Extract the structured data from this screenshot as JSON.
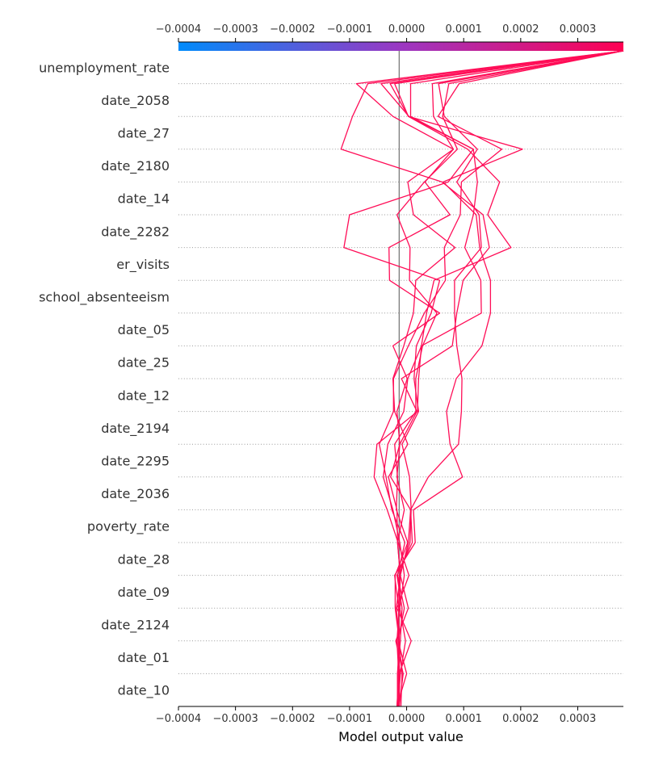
{
  "chart_data": {
    "type": "line",
    "xlabel": "Model output value",
    "xlim": [
      -0.0004,
      0.00038
    ],
    "base_value": -1.3e-05,
    "x_ticks": [
      -0.0004,
      -0.0003,
      -0.0002,
      -0.0001,
      0.0,
      0.0001,
      0.0002,
      0.0003
    ],
    "x_tick_labels": [
      "−0.0004",
      "−0.0003",
      "−0.0002",
      "−0.0001",
      "0.0000",
      "0.0001",
      "0.0002",
      "0.0003"
    ],
    "features": [
      "unemployment_rate",
      "date_2058",
      "date_27",
      "date_2180",
      "date_14",
      "date_2282",
      "er_visits",
      "school_absenteeism",
      "date_05",
      "date_25",
      "date_12",
      "date_2194",
      "date_2295",
      "date_2036",
      "poverty_rate",
      "date_28",
      "date_09",
      "date_2124",
      "date_01",
      "date_10"
    ],
    "line_color": "#ff0d57",
    "colorbar": [
      "#008bfb",
      "#ff0052"
    ],
    "series": [
      {
        "values": [
          -1.7e-05,
          -1.4e-05,
          -1.7e-05,
          -1.3e-05,
          -1.1e-05,
          -1.6e-05,
          -4e-06,
          -1.7e-05,
          -1.2e-05,
          -1.7e-05,
          1e-06,
          -2.4e-05,
          5.8e-05,
          -3e-05,
          -3.1e-05,
          7.6e-05,
          3.2e-05,
          8.2e-05,
          4.7e-05,
          4.5e-05,
          0.00038
        ]
      },
      {
        "values": [
          -1.7e-05,
          0.0,
          -1.5e-05,
          -4e-06,
          -1.6e-05,
          -3e-06,
          -2.6e-05,
          -3.6e-05,
          -4.8e-05,
          -2.3e-05,
          -2.3e-05,
          3e-06,
          3.1e-05,
          6.8e-05,
          6.6e-05,
          9.4e-05,
          9.6e-05,
          0.000167,
          5.5e-05,
          9.2e-05,
          0.00038
        ]
      },
      {
        "values": [
          -1.4e-05,
          -1.4e-05,
          -1.3e-05,
          -2e-05,
          -2e-05,
          2e-06,
          -1.8e-05,
          -1.6e-05,
          -2.1e-05,
          1.6e-05,
          1.6e-05,
          2.8e-05,
          5.3e-05,
          5e-06,
          6e-06,
          -1.7e-05,
          3.1e-05,
          8.9e-05,
          6.3e-05,
          7.4e-05,
          0.00038
        ]
      },
      {
        "values": [
          -1e-05,
          -8e-06,
          -1.3e-05,
          -1.4e-05,
          -1.3e-05,
          6e-06,
          8e-06,
          5e-06,
          -8e-06,
          2.1e-05,
          1.3e-05,
          1.7e-05,
          4.3e-05,
          5.8e-05,
          -0.00011,
          -0.0001,
          7.3e-05,
          0.000117,
          7e-06,
          7e-06,
          0.00038
        ]
      },
      {
        "values": [
          -1.6e-05,
          -1.6e-05,
          -1.1e-05,
          -8e-06,
          -1.7e-05,
          1e-05,
          7e-06,
          3.8e-05,
          9.1e-05,
          9.6e-05,
          9.7e-05,
          8.8e-05,
          8.4e-05,
          8.4e-05,
          0.000131,
          0.000127,
          8.8e-05,
          0.000124,
          6.6e-05,
          5.6e-05,
          0.00038
        ]
      },
      {
        "values": [
          -1.5e-05,
          -1.1e-05,
          -2e-06,
          -1.2e-05,
          -4e-06,
          -1.2e-05,
          -2.4e-05,
          -4.1e-05,
          -3.3e-05,
          -5e-06,
          2e-06,
          2.6e-05,
          3.5e-05,
          4.8e-05,
          0.000183,
          0.000142,
          0.000163,
          0.000107,
          3e-06,
          -2.1e-05,
          0.00038
        ]
      },
      {
        "values": [
          -1.7e-05,
          -1.3e-05,
          8e-06,
          -1.7e-05,
          4e-06,
          -1.5e-05,
          -3.4e-05,
          -5.7e-05,
          -5.2e-05,
          1.9e-05,
          2.1e-05,
          2.6e-05,
          0.000131,
          0.00013,
          0.000102,
          0.000117,
          0.000124,
          0.000117,
          4e-06,
          -4.5e-05,
          0.00038
        ]
      },
      {
        "values": [
          -1.3e-05,
          -1.2e-05,
          -1.5e-05,
          -1.4e-05,
          -2.1e-05,
          1.5e-05,
          1.2e-05,
          9.8e-05,
          7.6e-05,
          7e-05,
          8.7e-05,
          0.000132,
          0.000147,
          0.000147,
          0.000128,
          0.000122,
          6.4e-05,
          0.000203,
          3e-06,
          -2.9e-05,
          0.00038
        ]
      },
      {
        "values": [
          -1.6e-05,
          -1.6e-05,
          -1.3e-05,
          -1.8e-05,
          -1.1e-05,
          -1.6e-05,
          -1.7e-05,
          -3.2e-05,
          2e-06,
          -2.1e-05,
          -2.4e-05,
          -5e-06,
          1.2e-05,
          1.6e-05,
          8.5e-05,
          1.2e-05,
          2e-06,
          8.2e-05,
          -2.4e-05,
          -8.8e-05,
          0.00038
        ]
      },
      {
        "values": [
          -1.3e-05,
          -6e-06,
          -1.9e-05,
          3e-06,
          -1.1e-05,
          3e-06,
          7e-06,
          -2.8e-05,
          -1.2e-05,
          1.8e-05,
          -9e-06,
          8e-05,
          8.8e-05,
          9.9e-05,
          0.000145,
          0.000134,
          6.2e-05,
          -0.000115,
          -9.5e-05,
          -6.8e-05,
          0.00038
        ]
      }
    ]
  }
}
